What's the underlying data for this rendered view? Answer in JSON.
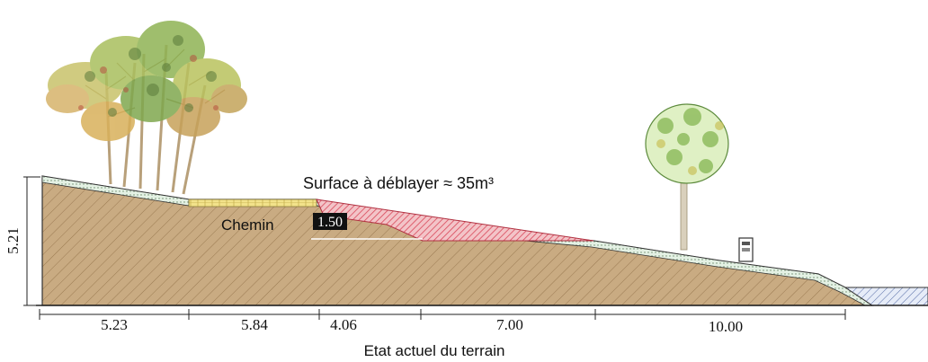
{
  "title": "Etat actuel du terrain",
  "annotation": "Surface à déblayer ≈ 35m³",
  "path_label": "Chemin",
  "cut_depth": "1.50",
  "height_dimension": "5.21",
  "horizontal_dimensions": [
    "5.23",
    "5.84",
    "4.06",
    "7.00",
    "10.00"
  ],
  "colors": {
    "ground": "#c9ab82",
    "hatch": "#9a7a52",
    "cut_area": "#d9475a",
    "path_strip": "#f2e28a",
    "topsoil": "#d8ead8",
    "water": "#8fa6d4"
  }
}
